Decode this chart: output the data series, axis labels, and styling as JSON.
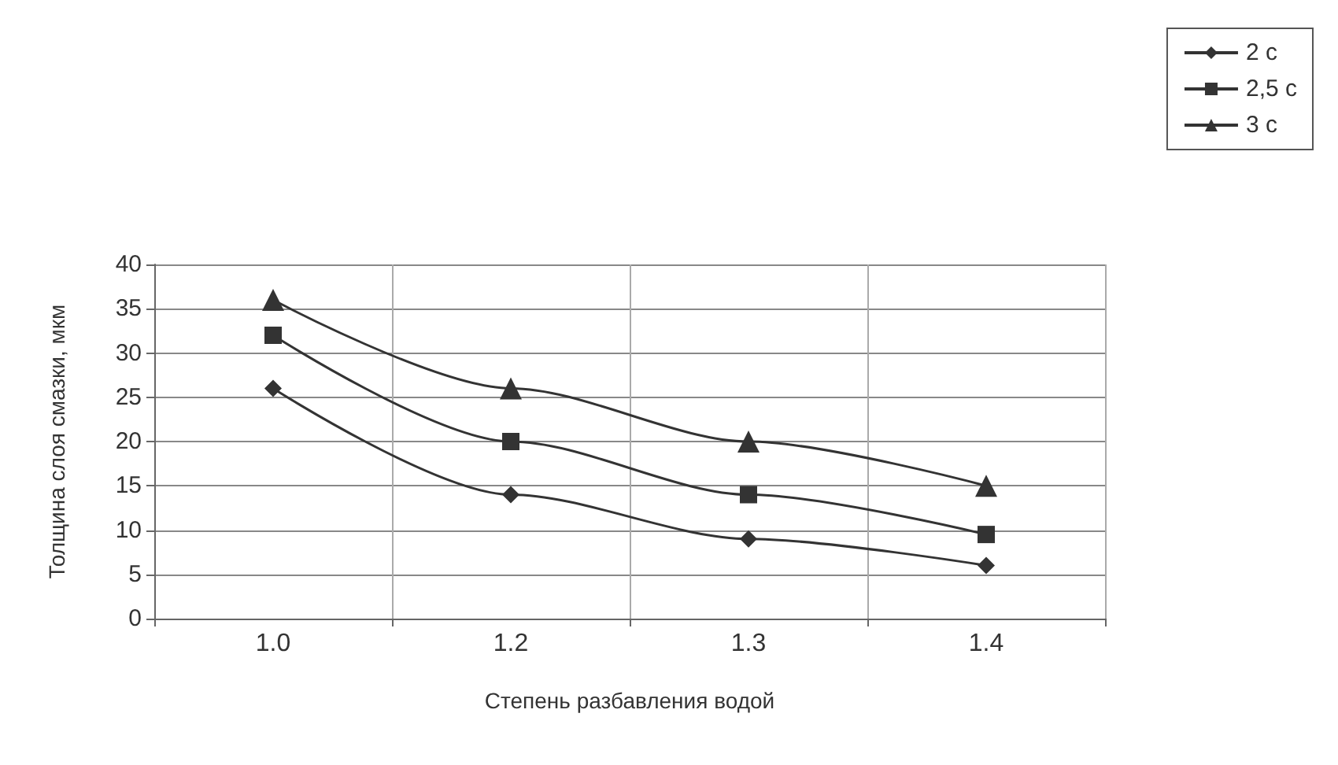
{
  "chart_data": {
    "type": "line",
    "xlabel": "Степень разбавления водой",
    "ylabel": "Толщина слоя смазки, мкм",
    "categories": [
      "1.0",
      "1.2",
      "1.3",
      "1.4"
    ],
    "series": [
      {
        "name": "2 с",
        "color": "#333333",
        "marker": "diamond",
        "values": [
          26,
          14,
          9,
          6
        ]
      },
      {
        "name": "2,5 с",
        "color": "#333333",
        "marker": "square",
        "values": [
          32,
          20,
          14,
          9.5
        ]
      },
      {
        "name": "3 с",
        "color": "#333333",
        "marker": "triangle",
        "values": [
          36,
          26,
          20,
          15
        ]
      }
    ],
    "ylim": [
      0,
      40
    ],
    "yticks": [
      0,
      5,
      10,
      15,
      20,
      25,
      30,
      35,
      40
    ],
    "grid": true,
    "legend": "top right",
    "line_style": "solid"
  }
}
